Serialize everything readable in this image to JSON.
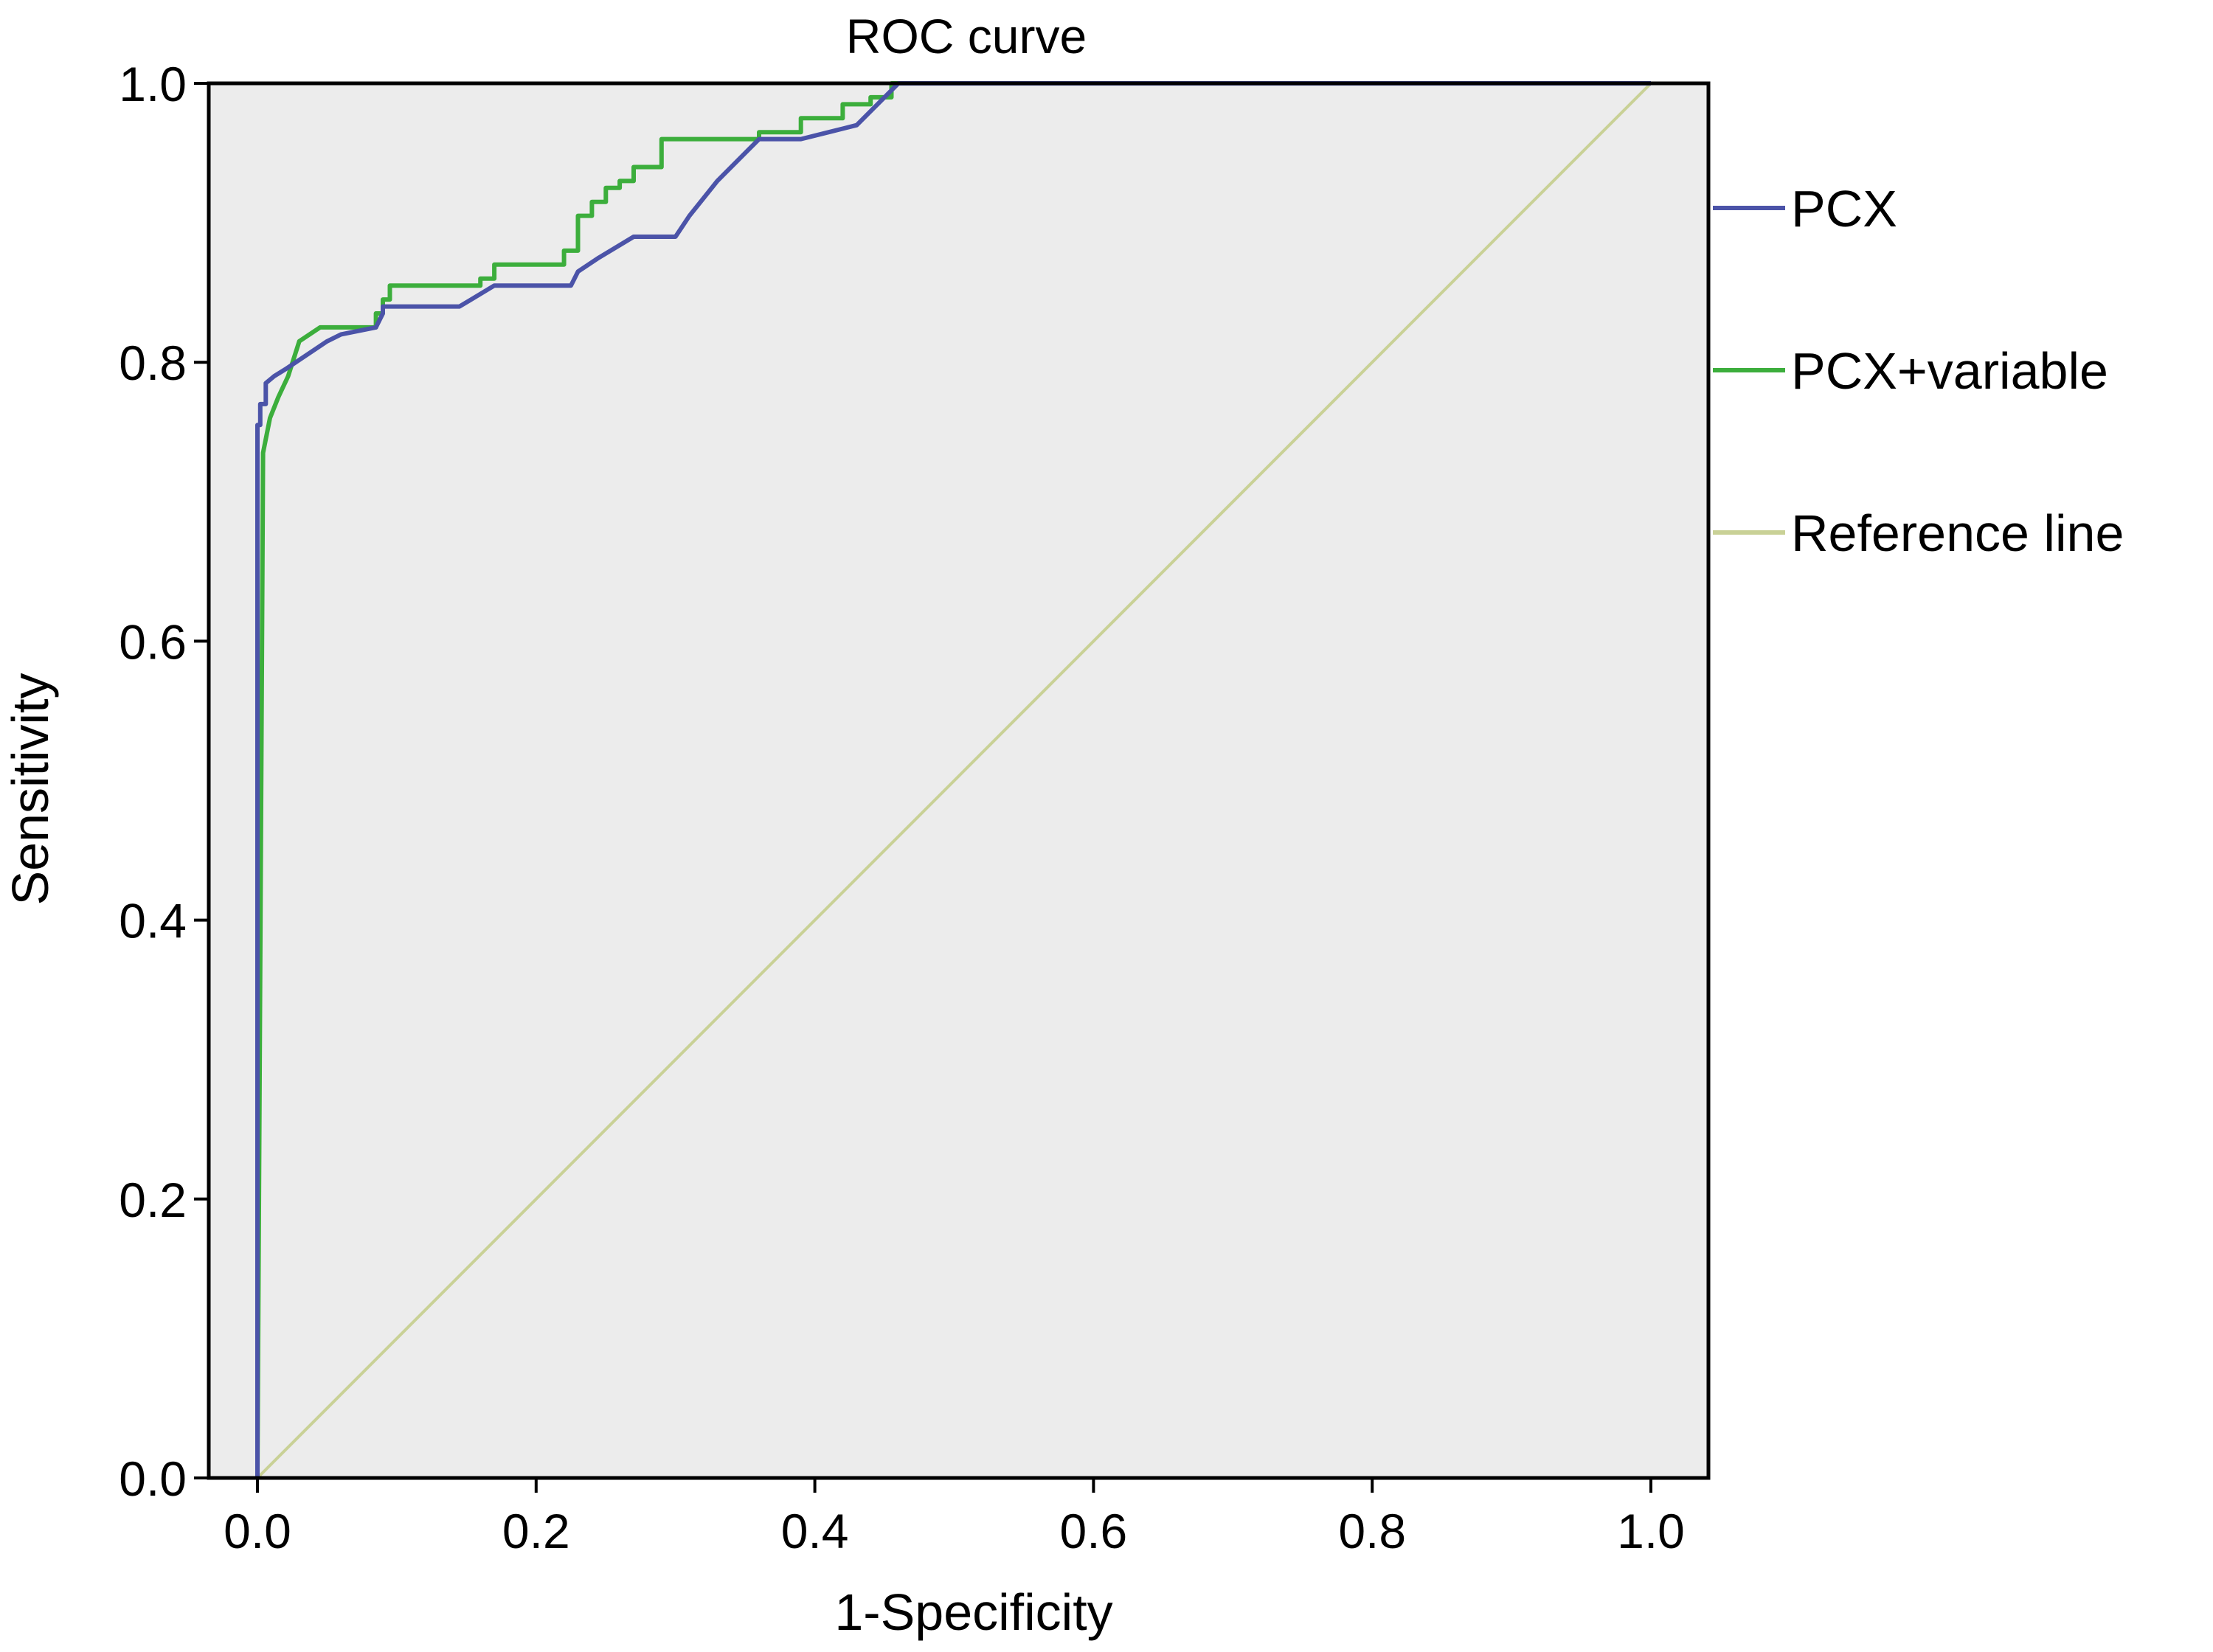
{
  "chart_data": {
    "type": "line",
    "title": "ROC curve",
    "xlabel": "1-Specificity",
    "ylabel": "Sensitivity",
    "xlim": [
      0,
      1
    ],
    "ylim": [
      0,
      1
    ],
    "x_ticks": [
      "0.0",
      "0.2",
      "0.4",
      "0.6",
      "0.8",
      "1.0"
    ],
    "y_ticks": [
      "0.0",
      "0.2",
      "0.4",
      "0.6",
      "0.8",
      "1.0"
    ],
    "grid": false,
    "plot_background": "#ececec",
    "legend_position": "right",
    "series": [
      {
        "name": "PCX",
        "color": "#4b53a8",
        "x": [
          0,
          0,
          0.002,
          0.002,
          0.006,
          0.006,
          0.012,
          0.02,
          0.035,
          0.05,
          0.06,
          0.085,
          0.09,
          0.09,
          0.1,
          0.145,
          0.17,
          0.175,
          0.225,
          0.23,
          0.245,
          0.27,
          0.3,
          0.31,
          0.33,
          0.36,
          0.39,
          0.41,
          0.43,
          0.45,
          0.46,
          0.47,
          1.0
        ],
        "y": [
          0,
          0.755,
          0.755,
          0.77,
          0.77,
          0.785,
          0.79,
          0.795,
          0.805,
          0.815,
          0.82,
          0.825,
          0.835,
          0.84,
          0.84,
          0.84,
          0.855,
          0.855,
          0.855,
          0.865,
          0.875,
          0.89,
          0.89,
          0.905,
          0.93,
          0.96,
          0.96,
          0.965,
          0.97,
          0.99,
          1.0,
          1.0,
          1.0
        ]
      },
      {
        "name": "PCX+variable",
        "color": "#3cae3c",
        "x": [
          0,
          0,
          0.004,
          0.004,
          0.009,
          0.009,
          0.015,
          0.015,
          0.022,
          0.022,
          0.03,
          0.03,
          0.045,
          0.06,
          0.06,
          0.085,
          0.085,
          0.09,
          0.09,
          0.095,
          0.095,
          0.16,
          0.16,
          0.17,
          0.17,
          0.22,
          0.22,
          0.23,
          0.23,
          0.24,
          0.24,
          0.25,
          0.25,
          0.26,
          0.26,
          0.27,
          0.27,
          0.29,
          0.29,
          0.34,
          0.34,
          0.36,
          0.36,
          0.39,
          0.39,
          0.42,
          0.42,
          0.44,
          0.44,
          0.455,
          0.455,
          0.46,
          0.46,
          0.47,
          1.0
        ],
        "y": [
          0,
          0,
          0.735,
          0.735,
          0.76,
          0.76,
          0.775,
          0.775,
          0.79,
          0.79,
          0.815,
          0.815,
          0.825,
          0.825,
          0.825,
          0.825,
          0.835,
          0.835,
          0.845,
          0.845,
          0.855,
          0.855,
          0.86,
          0.86,
          0.87,
          0.87,
          0.88,
          0.88,
          0.905,
          0.905,
          0.915,
          0.915,
          0.925,
          0.925,
          0.93,
          0.93,
          0.94,
          0.94,
          0.96,
          0.96,
          0.96,
          0.96,
          0.965,
          0.965,
          0.975,
          0.975,
          0.985,
          0.985,
          0.99,
          0.99,
          1.0,
          1.0,
          1.0,
          1.0,
          1.0
        ]
      },
      {
        "name": "Reference line",
        "color": "#c9d196",
        "x": [
          0,
          1
        ],
        "y": [
          0,
          1
        ]
      }
    ]
  }
}
